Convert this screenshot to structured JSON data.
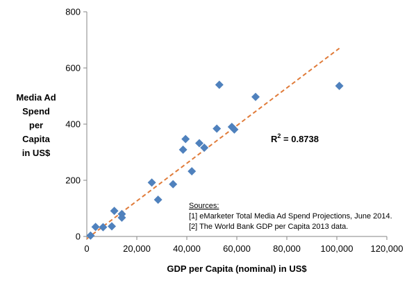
{
  "chart_data": {
    "type": "scatter",
    "xlabel": "GDP per Capita (nominal) in US$",
    "ylabel_lines": [
      "Media Ad",
      "Spend",
      "per",
      "Capita",
      "in US$"
    ],
    "xlim": [
      0,
      120000
    ],
    "ylim": [
      0,
      800
    ],
    "x_ticks": [
      "0",
      "20,000",
      "40,000",
      "60,000",
      "80,000",
      "100,000",
      "120,000"
    ],
    "y_ticks": [
      "0",
      "200",
      "400",
      "600",
      "800"
    ],
    "points": [
      {
        "x": 1500,
        "y": 3
      },
      {
        "x": 3500,
        "y": 34
      },
      {
        "x": 6500,
        "y": 33
      },
      {
        "x": 10000,
        "y": 36
      },
      {
        "x": 11000,
        "y": 91
      },
      {
        "x": 14000,
        "y": 80
      },
      {
        "x": 14000,
        "y": 67
      },
      {
        "x": 26000,
        "y": 192
      },
      {
        "x": 28500,
        "y": 131
      },
      {
        "x": 34500,
        "y": 186
      },
      {
        "x": 38500,
        "y": 309
      },
      {
        "x": 39500,
        "y": 347
      },
      {
        "x": 42000,
        "y": 232
      },
      {
        "x": 45000,
        "y": 332
      },
      {
        "x": 47000,
        "y": 316
      },
      {
        "x": 52000,
        "y": 384
      },
      {
        "x": 53000,
        "y": 540
      },
      {
        "x": 58000,
        "y": 390
      },
      {
        "x": 59000,
        "y": 381
      },
      {
        "x": 67500,
        "y": 497
      },
      {
        "x": 101000,
        "y": 536
      }
    ],
    "trendline": {
      "style": "dashed",
      "x": [
        0,
        101000
      ],
      "y": [
        -8,
        670
      ]
    },
    "annotation": {
      "text_prefix": "R",
      "superscript": "2",
      "text_suffix": " = 0.8738"
    },
    "sources": {
      "heading": "Sources:",
      "lines": [
        "[1] eMarketer Total Media Ad Spend Projections, June 2014.",
        "[2] The World Bank GDP per Capita 2013 data."
      ]
    },
    "grid": false,
    "legend": "none",
    "colors": {
      "marker": "#4F81BD",
      "trendline": "#E07B39",
      "axis": "#868686"
    }
  }
}
